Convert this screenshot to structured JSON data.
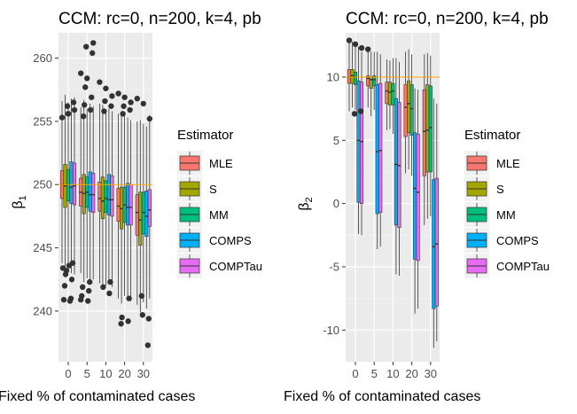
{
  "chart_data": [
    {
      "type": "boxplot",
      "title": "CCM: rc=0, n=200, k=4, pb",
      "xlabel": "Fixed % of contaminated cases",
      "ylabel_main": "β",
      "ylabel_sub": "1",
      "categories": [
        "0",
        "5",
        "10",
        "20",
        "30"
      ],
      "ylim": [
        236,
        262
      ],
      "yticks": [
        240,
        245,
        250,
        255,
        260
      ],
      "yticklabels": [
        "240",
        "245",
        "250",
        "255",
        "260"
      ],
      "grid": true,
      "reference_line": 250,
      "legend": {
        "title": "Estimator",
        "placement": "right",
        "entries": [
          "MLE",
          "S",
          "MM",
          "COMPS",
          "COMPTau"
        ]
      },
      "series": [
        {
          "name": "MLE",
          "color": "#F8766D",
          "boxes": [
            {
              "q1": 248.9,
              "median": 250.0,
              "q3": 251.1,
              "wlow": 243.8,
              "whigh": 256.6
            },
            {
              "q1": 248.3,
              "median": 249.4,
              "q3": 250.5,
              "wlow": 243.0,
              "whigh": 256.1
            },
            {
              "q1": 247.9,
              "median": 248.9,
              "q3": 250.2,
              "wlow": 242.2,
              "whigh": 256.4
            },
            {
              "q1": 247.1,
              "median": 248.3,
              "q3": 249.7,
              "wlow": 241.0,
              "whigh": 255.6
            },
            {
              "q1": 246.0,
              "median": 247.8,
              "q3": 249.2,
              "wlow": 240.5,
              "whigh": 255.0
            }
          ]
        },
        {
          "name": "S",
          "color": "#A3A500",
          "boxes": [
            {
              "q1": 248.2,
              "median": 249.9,
              "q3": 251.6,
              "wlow": 242.7,
              "whigh": 257.1
            },
            {
              "q1": 247.7,
              "median": 249.3,
              "q3": 250.8,
              "wlow": 242.3,
              "whigh": 256.7
            },
            {
              "q1": 247.3,
              "median": 248.7,
              "q3": 250.6,
              "wlow": 241.8,
              "whigh": 256.3
            },
            {
              "q1": 246.5,
              "median": 248.1,
              "q3": 249.8,
              "wlow": 240.6,
              "whigh": 255.6
            },
            {
              "q1": 245.2,
              "median": 247.2,
              "q3": 249.4,
              "wlow": 239.9,
              "whigh": 255.1
            }
          ]
        },
        {
          "name": "MM",
          "color": "#00BF7D",
          "boxes": [
            {
              "q1": 248.7,
              "median": 250.0,
              "q3": 251.2,
              "wlow": 243.4,
              "whigh": 256.5
            },
            {
              "q1": 248.2,
              "median": 249.4,
              "q3": 250.6,
              "wlow": 242.6,
              "whigh": 256.0
            },
            {
              "q1": 247.8,
              "median": 248.9,
              "q3": 250.3,
              "wlow": 242.0,
              "whigh": 255.7
            },
            {
              "q1": 247.0,
              "median": 248.4,
              "q3": 249.8,
              "wlow": 241.2,
              "whigh": 255.5
            },
            {
              "q1": 246.1,
              "median": 247.8,
              "q3": 249.4,
              "wlow": 240.7,
              "whigh": 254.8
            }
          ]
        },
        {
          "name": "COMPS",
          "color": "#00B0F6",
          "boxes": [
            {
              "q1": 248.5,
              "median": 249.8,
              "q3": 251.8,
              "wlow": 243.0,
              "whigh": 256.8
            },
            {
              "q1": 247.9,
              "median": 249.2,
              "q3": 251.0,
              "wlow": 242.5,
              "whigh": 256.4
            },
            {
              "q1": 247.6,
              "median": 248.8,
              "q3": 250.8,
              "wlow": 242.1,
              "whigh": 256.0
            },
            {
              "q1": 246.8,
              "median": 248.2,
              "q3": 250.1,
              "wlow": 240.9,
              "whigh": 255.3
            },
            {
              "q1": 245.9,
              "median": 247.5,
              "q3": 249.5,
              "wlow": 240.2,
              "whigh": 254.6
            }
          ]
        },
        {
          "name": "COMPTau",
          "color": "#E76BF3",
          "boxes": [
            {
              "q1": 248.4,
              "median": 249.9,
              "q3": 251.7,
              "wlow": 242.9,
              "whigh": 256.9
            },
            {
              "q1": 247.8,
              "median": 249.2,
              "q3": 250.9,
              "wlow": 242.5,
              "whigh": 256.2
            },
            {
              "q1": 247.5,
              "median": 248.8,
              "q3": 250.7,
              "wlow": 241.9,
              "whigh": 255.8
            },
            {
              "q1": 246.8,
              "median": 248.2,
              "q3": 250.0,
              "wlow": 240.8,
              "whigh": 255.1
            },
            {
              "q1": 246.7,
              "median": 248.0,
              "q3": 249.6,
              "wlow": 241.0,
              "whigh": 255.5
            }
          ]
        }
      ],
      "outliers": [
        {
          "category": 0,
          "values": [
            255.3,
            255.6,
            255.9,
            256.2,
            256.5,
            243.2,
            243.8,
            242.9,
            242.5,
            242.0,
            241.0,
            240.9,
            240.8,
            243.4,
            243.6
          ]
        },
        {
          "category": 1,
          "values": [
            258.8,
            258.4,
            261.2,
            260.9,
            260.4,
            257.7,
            256.9,
            256.3,
            255.9,
            255.4,
            242.3,
            241.9,
            241.6,
            241.2,
            240.8,
            240.9
          ]
        },
        {
          "category": 2,
          "values": [
            258.1,
            257.6,
            257.0,
            256.6,
            256.2,
            255.8,
            242.3,
            241.9,
            241.4
          ]
        },
        {
          "category": 3,
          "values": [
            257.2,
            256.9,
            256.5,
            256.2,
            255.9,
            255.6,
            241.0,
            239.5,
            239.2,
            239.0
          ]
        },
        {
          "category": 4,
          "values": [
            256.8,
            256.4,
            255.2,
            239.7,
            239.4,
            241.2,
            237.3
          ]
        }
      ]
    },
    {
      "type": "boxplot",
      "title": "CCM: rc=0, n=200, k=4, pb",
      "xlabel": "Fixed % of contaminated cases",
      "ylabel_main": "β",
      "ylabel_sub": "2",
      "categories": [
        "0",
        "5",
        "10",
        "20",
        "30"
      ],
      "ylim": [
        -12.5,
        13.5
      ],
      "yticks": [
        -10,
        -5,
        0,
        5,
        10
      ],
      "yticklabels": [
        "-10",
        "-5",
        "0",
        "5",
        "10"
      ],
      "grid": true,
      "reference_line": 10,
      "series": [
        {
          "name": "MLE",
          "color": "#F8766D",
          "boxes": [
            {
              "q1": 9.5,
              "median": 10.0,
              "q3": 10.6,
              "wlow": 7.3,
              "whigh": 12.7
            },
            {
              "q1": 9.3,
              "median": 9.9,
              "q3": 10.1,
              "wlow": 7.6,
              "whigh": 12.3
            },
            {
              "q1": 7.9,
              "median": 8.9,
              "q3": 9.6,
              "wlow": 5.8,
              "whigh": 11.4
            },
            {
              "q1": 5.3,
              "median": 7.6,
              "q3": 9.4,
              "wlow": 2.4,
              "whigh": 12.0
            },
            {
              "q1": 2.2,
              "median": 5.7,
              "q3": 9.0,
              "wlow": -1.7,
              "whigh": 11.8
            }
          ]
        },
        {
          "name": "S",
          "color": "#A3A500",
          "boxes": [
            {
              "q1": 9.5,
              "median": 10.1,
              "q3": 10.6,
              "wlow": 7.6,
              "whigh": 12.8
            },
            {
              "q1": 9.1,
              "median": 9.8,
              "q3": 10.0,
              "wlow": 6.9,
              "whigh": 12.0
            },
            {
              "q1": 7.8,
              "median": 8.8,
              "q3": 9.6,
              "wlow": 5.9,
              "whigh": 11.3
            },
            {
              "q1": 5.6,
              "median": 7.9,
              "q3": 9.7,
              "wlow": 2.7,
              "whigh": 12.2
            },
            {
              "q1": 2.5,
              "median": 5.8,
              "q3": 9.4,
              "wlow": -1.2,
              "whigh": 11.9
            }
          ]
        },
        {
          "name": "MM",
          "color": "#00BF7D",
          "boxes": [
            {
              "q1": 9.4,
              "median": 10.0,
              "q3": 10.4,
              "wlow": 7.4,
              "whigh": 12.5
            },
            {
              "q1": 9.3,
              "median": 9.8,
              "q3": 10.1,
              "wlow": 7.4,
              "whigh": 12.0
            },
            {
              "q1": 7.8,
              "median": 8.9,
              "q3": 9.5,
              "wlow": 5.5,
              "whigh": 11.5
            },
            {
              "q1": 5.4,
              "median": 7.5,
              "q3": 9.4,
              "wlow": 2.2,
              "whigh": 11.8
            },
            {
              "q1": 2.5,
              "median": 6.0,
              "q3": 9.3,
              "wlow": -1.0,
              "whigh": 11.7
            }
          ]
        },
        {
          "name": "COMPS",
          "color": "#00B0F6",
          "boxes": [
            {
              "q1": 0.1,
              "median": 5.0,
              "q3": 9.7,
              "wlow": -2.4,
              "whigh": 12.4
            },
            {
              "q1": -0.8,
              "median": 4.1,
              "q3": 9.4,
              "wlow": -3.6,
              "whigh": 12.0
            },
            {
              "q1": -1.7,
              "median": 3.1,
              "q3": 8.3,
              "wlow": -5.6,
              "whigh": 11.5
            },
            {
              "q1": -4.4,
              "median": 1.2,
              "q3": 5.6,
              "wlow": -8.7,
              "whigh": 9.1
            },
            {
              "q1": -8.3,
              "median": -3.4,
              "q3": 1.9,
              "wlow": -11.4,
              "whigh": 8.3
            }
          ]
        },
        {
          "name": "COMPTau",
          "color": "#E76BF3",
          "boxes": [
            {
              "q1": 0.0,
              "median": 4.9,
              "q3": 9.6,
              "wlow": -2.5,
              "whigh": 12.0
            },
            {
              "q1": -0.7,
              "median": 4.2,
              "q3": 9.5,
              "wlow": -3.4,
              "whigh": 11.8
            },
            {
              "q1": -1.9,
              "median": 3.0,
              "q3": 8.0,
              "wlow": -5.7,
              "whigh": 11.2
            },
            {
              "q1": -4.5,
              "median": 0.9,
              "q3": 5.5,
              "wlow": -8.3,
              "whigh": 9.0
            },
            {
              "q1": -8.1,
              "median": -3.2,
              "q3": 2.0,
              "wlow": -10.9,
              "whigh": 7.9
            }
          ]
        }
      ],
      "outliers": [
        {
          "category": 0,
          "values": [
            12.9,
            12.6,
            12.3,
            7.1,
            7.3
          ]
        },
        {
          "category": 1,
          "values": [
            12.2
          ]
        },
        {
          "category": 2,
          "values": []
        },
        {
          "category": 3,
          "values": []
        },
        {
          "category": 4,
          "values": []
        }
      ]
    }
  ]
}
